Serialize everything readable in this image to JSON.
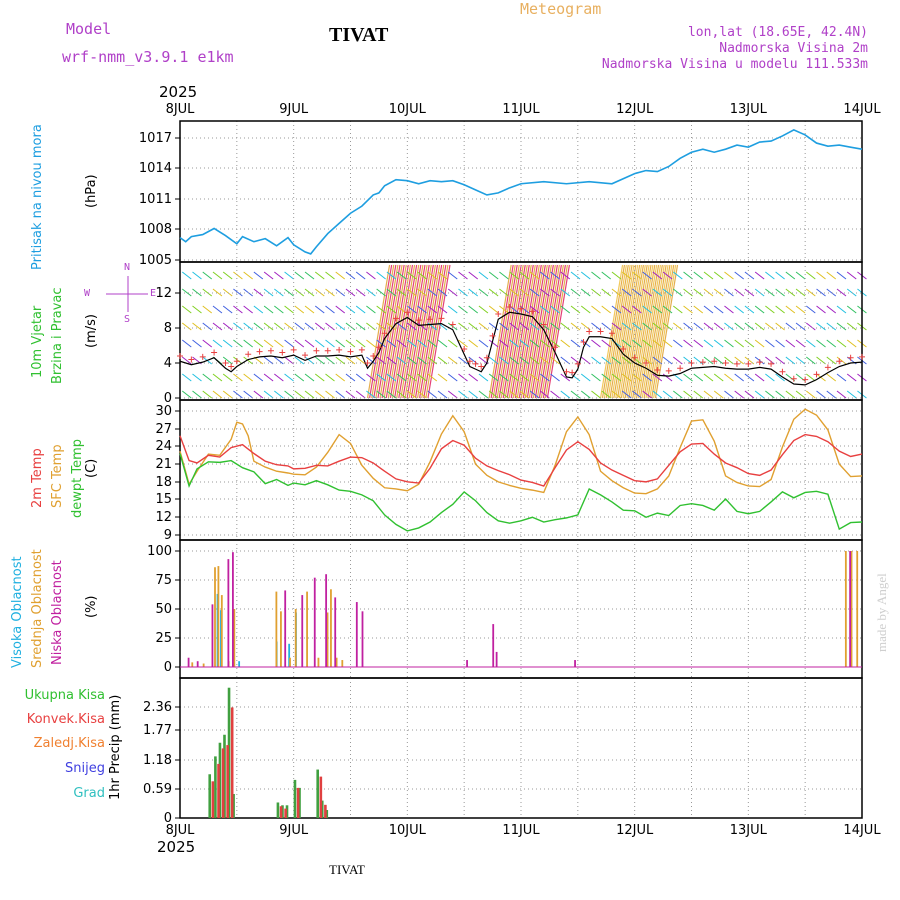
{
  "header": {
    "model_label": "Model",
    "model_name": "wrf-nmm_v3.9.1 e1km",
    "title": "TIVAT",
    "subtitle": "Meteogram",
    "coords": "lon,lat (18.65E, 42.4N)",
    "altitude": "Nadmorska Visina 2m",
    "model_altitude": "Nadmorska Visina u modelu 111.533m",
    "year_top": "2025",
    "year_bottom": "2025",
    "footer_title": "TIVAT",
    "credit": "made by Angel"
  },
  "colors": {
    "pressure": "#1e9ee0",
    "temp2m": "#e84040",
    "sfc": "#e0a030",
    "dewpt": "#30c030",
    "high_cloud": "#20b0e0",
    "mid_cloud": "#e0a030",
    "low_cloud": "#c020a0",
    "total_rain": "#40a040",
    "convective": "#e04040",
    "frozen": "#f08030",
    "snow": "#4040e0",
    "hail": "#30c0c0"
  },
  "chart_data": [
    {
      "type": "line",
      "panel": "pressure",
      "ylabel_title": "Pritisak na nivou mora",
      "ylabel_unit": "(hPa)",
      "x_ticks": [
        "8JUL",
        "9JUL",
        "10JUL",
        "11JUL",
        "12JUL",
        "13JUL",
        "14JUL"
      ],
      "yticks": [
        "1005",
        "1008",
        "1011",
        "1014",
        "1017"
      ],
      "ylim": [
        1005,
        1018.2
      ],
      "grid": true,
      "series": [
        {
          "key": "pressure",
          "x": [
            0,
            0.05,
            0.1,
            0.2,
            0.3,
            0.4,
            0.5,
            0.55,
            0.65,
            0.75,
            0.85,
            0.95,
            1.0,
            1.1,
            1.15,
            1.2,
            1.3,
            1.4,
            1.5,
            1.6,
            1.7,
            1.75,
            1.8,
            1.9,
            2.0,
            2.1,
            2.2,
            2.3,
            2.4,
            2.5,
            2.6,
            2.7,
            2.8,
            2.9,
            3.0,
            3.2,
            3.4,
            3.6,
            3.8,
            4.0,
            4.1,
            4.2,
            4.3,
            4.4,
            4.5,
            4.6,
            4.7,
            4.8,
            4.9,
            5.0,
            5.1,
            5.2,
            5.3,
            5.4,
            5.5,
            5.6,
            5.7,
            5.8,
            5.9,
            6.0
          ],
          "y": [
            1007.2,
            1006.8,
            1007.3,
            1007.5,
            1008.1,
            1007.4,
            1006.6,
            1007.3,
            1006.8,
            1007.1,
            1006.4,
            1007.2,
            1006.5,
            1005.8,
            1005.6,
            1006.3,
            1007.6,
            1008.6,
            1009.6,
            1010.3,
            1011.4,
            1011.6,
            1012.3,
            1012.9,
            1012.8,
            1012.5,
            1012.8,
            1012.7,
            1012.8,
            1012.4,
            1011.9,
            1011.4,
            1011.6,
            1012.1,
            1012.5,
            1012.7,
            1012.5,
            1012.7,
            1012.5,
            1013.5,
            1013.8,
            1013.7,
            1014.2,
            1015.0,
            1015.6,
            1015.9,
            1015.6,
            1015.9,
            1016.3,
            1016.1,
            1016.6,
            1016.7,
            1017.2,
            1017.8,
            1017.3,
            1016.5,
            1016.2,
            1016.3,
            1016.1,
            1015.9
          ]
        }
      ]
    },
    {
      "type": "line",
      "panel": "wind",
      "ylabel_title": "10m Vjetar",
      "ylabel_title2": "Brzina i Pravac",
      "ylabel_unit": "(m/s)",
      "compass_n": "N",
      "compass_s": "S",
      "compass_w": "W",
      "compass_e": "E",
      "yticks": [
        "0",
        "4",
        "8",
        "12"
      ],
      "ylim": [
        0,
        15.3
      ],
      "grid": true,
      "series": [
        {
          "key": "wind_speed",
          "x": [
            0,
            0.1,
            0.2,
            0.3,
            0.4,
            0.45,
            0.5,
            0.6,
            0.7,
            0.8,
            0.9,
            1.0,
            1.1,
            1.2,
            1.3,
            1.4,
            1.5,
            1.6,
            1.65,
            1.7,
            1.75,
            1.8,
            1.9,
            2.0,
            2.1,
            2.2,
            2.3,
            2.4,
            2.5,
            2.55,
            2.6,
            2.65,
            2.7,
            2.75,
            2.8,
            2.9,
            3.0,
            3.1,
            3.2,
            3.3,
            3.4,
            3.45,
            3.5,
            3.55,
            3.6,
            3.7,
            3.8,
            3.9,
            4.0,
            4.1,
            4.2,
            4.3,
            4.4,
            4.5,
            4.6,
            4.7,
            4.8,
            4.9,
            5.0,
            5.1,
            5.2,
            5.3,
            5.4,
            5.5,
            5.6,
            5.7,
            5.8,
            5.9,
            6.0
          ],
          "y": [
            4.2,
            3.8,
            4.1,
            4.6,
            3.4,
            3.0,
            3.6,
            4.4,
            4.7,
            4.8,
            4.6,
            4.9,
            4.3,
            4.8,
            4.8,
            4.9,
            4.7,
            4.9,
            3.4,
            4.2,
            5.2,
            6.8,
            8.5,
            9.2,
            8.3,
            8.4,
            8.5,
            7.8,
            5.0,
            3.6,
            3.3,
            3.0,
            4.0,
            6.5,
            9.0,
            9.8,
            9.6,
            9.3,
            7.8,
            5.2,
            2.4,
            2.3,
            3.3,
            5.8,
            7.0,
            7.0,
            6.8,
            5.0,
            4.0,
            3.4,
            2.6,
            2.5,
            2.8,
            3.4,
            3.5,
            3.6,
            3.4,
            3.3,
            3.3,
            3.5,
            3.3,
            2.4,
            1.6,
            1.5,
            2.1,
            2.9,
            3.6,
            4.0,
            4.1
          ]
        }
      ]
    },
    {
      "type": "line",
      "panel": "temperature",
      "ylabel_title": "2m Temp",
      "ylabel_title2": "SFC Temp",
      "ylabel_title3": "dewpt Temp",
      "ylabel_unit": "(C)",
      "yticks": [
        "9",
        "12",
        "15",
        "18",
        "21",
        "24",
        "27",
        "30"
      ],
      "ylim": [
        8.2,
        31.5
      ],
      "grid": true,
      "series": [
        {
          "key": "temp2m",
          "x": [
            0,
            0.08,
            0.15,
            0.25,
            0.35,
            0.45,
            0.55,
            0.65,
            0.75,
            0.85,
            0.95,
            1.0,
            1.1,
            1.2,
            1.3,
            1.4,
            1.5,
            1.6,
            1.7,
            1.8,
            1.9,
            2.0,
            2.1,
            2.2,
            2.3,
            2.4,
            2.5,
            2.6,
            2.7,
            2.8,
            2.9,
            3.0,
            3.1,
            3.2,
            3.3,
            3.4,
            3.5,
            3.6,
            3.7,
            3.8,
            3.9,
            4.0,
            4.1,
            4.2,
            4.3,
            4.4,
            4.5,
            4.6,
            4.7,
            4.8,
            4.9,
            5.0,
            5.1,
            5.2,
            5.3,
            5.4,
            5.5,
            5.6,
            5.7,
            5.8,
            5.9,
            6.0
          ],
          "y": [
            25.8,
            21.6,
            21.2,
            22.5,
            22.2,
            23.8,
            24.3,
            22.8,
            21.5,
            20.9,
            20.7,
            20.2,
            20.3,
            20.8,
            20.7,
            21.5,
            22.2,
            22.1,
            21.2,
            19.8,
            18.5,
            18.0,
            17.8,
            20.3,
            23.6,
            25.0,
            24.2,
            22.0,
            20.7,
            19.9,
            19.2,
            18.3,
            17.9,
            17.3,
            20.4,
            23.4,
            24.8,
            23.5,
            21.2,
            20.0,
            19.1,
            18.2,
            18.0,
            18.5,
            20.8,
            23.1,
            24.4,
            24.5,
            22.7,
            21.2,
            20.4,
            19.4,
            19.1,
            20.0,
            22.6,
            25.0,
            26.0,
            25.7,
            24.8,
            23.2,
            22.3,
            22.7
          ]
        },
        {
          "key": "sfc",
          "x": [
            0,
            0.08,
            0.15,
            0.25,
            0.35,
            0.45,
            0.5,
            0.55,
            0.6,
            0.65,
            0.75,
            0.85,
            0.95,
            1.0,
            1.1,
            1.2,
            1.3,
            1.4,
            1.5,
            1.6,
            1.7,
            1.8,
            1.9,
            2.0,
            2.1,
            2.2,
            2.3,
            2.4,
            2.5,
            2.6,
            2.7,
            2.8,
            2.9,
            3.0,
            3.1,
            3.2,
            3.3,
            3.4,
            3.5,
            3.6,
            3.7,
            3.8,
            3.9,
            4.0,
            4.1,
            4.2,
            4.3,
            4.4,
            4.5,
            4.6,
            4.7,
            4.8,
            4.9,
            5.0,
            5.1,
            5.2,
            5.3,
            5.4,
            5.5,
            5.6,
            5.7,
            5.8,
            5.9,
            6.0
          ],
          "y": [
            23.2,
            17.6,
            19.8,
            22.7,
            22.5,
            25.2,
            28.1,
            27.8,
            25.8,
            21.5,
            20.5,
            19.8,
            19.5,
            19.3,
            19.2,
            20.5,
            23.0,
            26.0,
            24.5,
            20.8,
            18.6,
            17.0,
            16.8,
            16.5,
            17.6,
            21.4,
            26.1,
            29.2,
            26.5,
            21.0,
            19.1,
            18.0,
            17.4,
            16.9,
            16.6,
            16.2,
            20.8,
            26.5,
            29.0,
            26.0,
            19.8,
            18.2,
            17.0,
            16.1,
            16.0,
            16.8,
            19.0,
            23.8,
            28.3,
            28.5,
            24.9,
            19.0,
            17.9,
            17.3,
            17.2,
            18.4,
            23.9,
            28.6,
            30.3,
            29.3,
            26.8,
            21.0,
            18.9,
            19.0
          ]
        },
        {
          "key": "dewpt",
          "x": [
            0,
            0.08,
            0.15,
            0.25,
            0.35,
            0.45,
            0.55,
            0.65,
            0.75,
            0.85,
            0.95,
            1.0,
            1.1,
            1.2,
            1.3,
            1.4,
            1.5,
            1.6,
            1.7,
            1.8,
            1.9,
            2.0,
            2.1,
            2.2,
            2.3,
            2.4,
            2.5,
            2.6,
            2.7,
            2.8,
            2.9,
            3.0,
            3.1,
            3.2,
            3.3,
            3.4,
            3.5,
            3.6,
            3.7,
            3.8,
            3.9,
            4.0,
            4.1,
            4.2,
            4.3,
            4.4,
            4.5,
            4.6,
            4.7,
            4.8,
            4.9,
            5.0,
            5.1,
            5.2,
            5.3,
            5.4,
            5.5,
            5.6,
            5.7,
            5.8,
            5.9,
            6.0
          ],
          "y": [
            22.8,
            17.3,
            20.2,
            21.4,
            21.3,
            21.6,
            20.4,
            19.7,
            17.7,
            18.4,
            17.4,
            17.8,
            17.5,
            18.2,
            17.5,
            16.6,
            16.4,
            15.8,
            14.8,
            12.4,
            10.8,
            9.7,
            10.2,
            11.2,
            12.8,
            14.2,
            16.3,
            14.8,
            12.8,
            11.4,
            11.0,
            11.4,
            12.0,
            11.2,
            11.6,
            11.9,
            12.4,
            16.8,
            15.8,
            14.6,
            13.2,
            13.1,
            12.0,
            12.7,
            12.3,
            14.0,
            14.3,
            14.0,
            13.2,
            15.1,
            13.0,
            12.6,
            13.0,
            14.6,
            16.3,
            15.3,
            16.2,
            16.4,
            15.9,
            10.0,
            11.1,
            11.2
          ]
        }
      ]
    },
    {
      "type": "bar",
      "panel": "clouds",
      "ylabel_title": "Visoka Oblacnost",
      "ylabel_title2": "Srednja Oblacnost",
      "ylabel_title3": "Niska Oblacnost",
      "ylabel_unit": "(%)",
      "yticks": [
        "0",
        "25",
        "50",
        "75",
        "100"
      ],
      "ylim": [
        0,
        102
      ],
      "grid": true,
      "series": [
        {
          "name": "Visoka Oblacnost",
          "key": "high_cloud",
          "x": [
            0.34,
            0.37,
            0.53,
            0.86,
            0.97,
            1.03
          ],
          "y": [
            63,
            49,
            5,
            22,
            20,
            47
          ]
        },
        {
          "name": "Srednja Oblacnost",
          "key": "mid_cloud",
          "x": [
            0.1,
            0.2,
            0.3,
            0.33,
            0.36,
            0.42,
            0.47,
            0.84,
            0.88,
            0.96,
            1.01,
            1.11,
            1.21,
            1.29,
            1.32,
            1.37,
            1.42,
            5.85,
            5.9,
            5.95
          ],
          "y": [
            4,
            3,
            86,
            87,
            62,
            5,
            50,
            65,
            48,
            8,
            50,
            65,
            8,
            47,
            67,
            8,
            6,
            100,
            100,
            100
          ]
        },
        {
          "name": "Niska Oblacnost",
          "key": "low_cloud",
          "x": [
            0.05,
            0.13,
            0.26,
            0.4,
            0.44,
            0.9,
            1.05,
            1.16,
            1.26,
            1.34,
            1.53,
            1.58,
            2.5,
            2.73,
            2.76,
            3.45,
            5.87
          ],
          "y": [
            8,
            5,
            54,
            93,
            99,
            66,
            62,
            77,
            80,
            60,
            56,
            48,
            6,
            37,
            13,
            6,
            100
          ]
        }
      ]
    },
    {
      "type": "bar",
      "panel": "precipitation",
      "ylabel_title": "1hr Precip (mm)",
      "legend": [
        "Ukupna Kisa",
        "Konvek.Kisa",
        "Zaledj.Kisa",
        "Snijeg",
        "Grad"
      ],
      "yticks": [
        "0",
        "0.59",
        "1.18",
        "1.77",
        "2.36"
      ],
      "ylim": [
        0,
        2.85
      ],
      "grid": true,
      "series": [
        {
          "name": "Ukupna Kisa",
          "key": "total_rain",
          "x": [
            0.25,
            0.3,
            0.34,
            0.38,
            0.42,
            0.46,
            0.85,
            0.89,
            0.93,
            1.0,
            1.04,
            1.2,
            1.24,
            1.28
          ],
          "y": [
            0.93,
            1.31,
            1.6,
            1.77,
            2.77,
            0.51,
            0.33,
            0.27,
            0.27,
            0.81,
            0.64,
            1.03,
            0.37,
            0.17
          ]
        },
        {
          "name": "Konvek.Kisa",
          "key": "convective",
          "x": [
            0.26,
            0.31,
            0.35,
            0.39,
            0.43,
            0.86,
            0.9,
            1.01,
            1.21,
            1.25
          ],
          "y": [
            0.78,
            1.15,
            1.48,
            1.55,
            2.35,
            0.25,
            0.2,
            0.64,
            0.88,
            0.28
          ]
        }
      ]
    }
  ]
}
